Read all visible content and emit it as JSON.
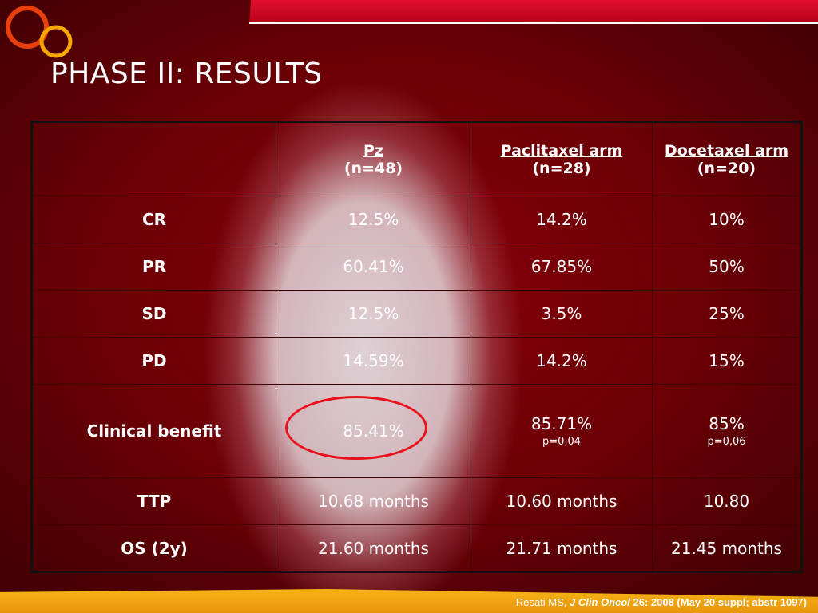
{
  "title": "PHASE II: RESULTS",
  "colors": {
    "background": "#6a0006",
    "accent_red": "#e0102e",
    "accent_orange": "#f6b317",
    "circle": "#e8101a"
  },
  "logo": {
    "icon": "two-interlocking-rings-logo"
  },
  "table": {
    "columns": [
      {
        "name": "Pz",
        "n": "(n=48)"
      },
      {
        "name": "Paclitaxel arm",
        "n": "(n=28)"
      },
      {
        "name": "Docetaxel arm",
        "n": "(n=20)"
      }
    ],
    "rows": [
      {
        "label": "CR",
        "values": [
          "12.5%",
          "14.2%",
          "10%"
        ]
      },
      {
        "label": "PR",
        "values": [
          "60.41%",
          "67.85%",
          "50%"
        ]
      },
      {
        "label": "SD",
        "values": [
          "12.5%",
          "3.5%",
          "25%"
        ]
      },
      {
        "label": "PD",
        "values": [
          "14.59%",
          "14.2%",
          "15%"
        ]
      },
      {
        "label": "Clinical benefit",
        "values": [
          "85.41%",
          "85.71%",
          "85%"
        ],
        "pvalues": [
          "",
          "p=0,04",
          "p=0,06"
        ]
      },
      {
        "label": "TTP",
        "values": [
          "10.68 months",
          "10.60 months",
          "10.80"
        ]
      },
      {
        "label": "OS (2y)",
        "values": [
          "21.60 months",
          "21.71 months",
          "21.45 months"
        ]
      }
    ]
  },
  "citation": {
    "author": "Resati MS,",
    "journal": "J Clin Oncol",
    "rest": "26: 2008 (May 20 suppl; abstr 1097)"
  }
}
